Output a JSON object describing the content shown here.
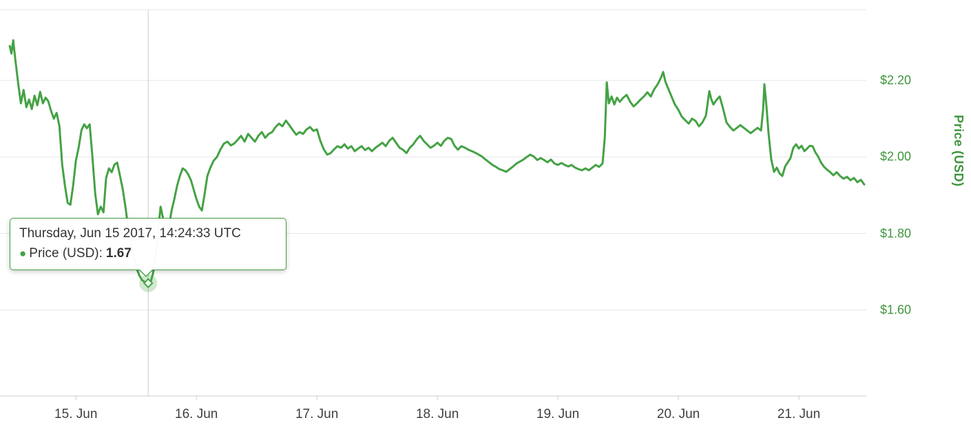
{
  "colors": {
    "line": "#44a244",
    "axis_label_green": "#3e953e",
    "x_tick_text": "#3f3f3f",
    "grid": "#e6e6e6",
    "axis_line": "#cccccc",
    "crosshair": "#cccccc",
    "halo_opacity": 0.25
  },
  "tooltip": {
    "datetime": "Thursday, Jun 15 2017, 14:24:33 UTC",
    "bullet": "●",
    "series_label": "Price (USD):",
    "value": "1.67",
    "point_day": 0.6,
    "point_price": 1.67
  },
  "chart_data": {
    "type": "line",
    "title": "",
    "series_name": "Price (USD)",
    "legend": "none",
    "grid": "horizontal-only",
    "x_axis": {
      "note": "x unit = days since 15 Jun 2017 00:00 UTC",
      "tick_labels": [
        "15. Jun",
        "16. Jun",
        "17. Jun",
        "18. Jun",
        "19. Jun",
        "20. Jun",
        "21. Jun"
      ],
      "tick_days": [
        0,
        1,
        2,
        3,
        4,
        5,
        6
      ],
      "xlim_days": [
        -0.63,
        6.56
      ]
    },
    "y_axis": {
      "title": "Price (USD)",
      "tick_labels": [
        "$2.20",
        "$2.00",
        "$1.80",
        "$1.60"
      ],
      "tick_values": [
        2.2,
        2.0,
        1.8,
        1.6
      ],
      "ylim": [
        1.375,
        2.385
      ],
      "position": "right"
    },
    "point_format": [
      "days_since_2017-06-15T00:00Z",
      "price_usd"
    ],
    "points": [
      [
        -0.549,
        2.29
      ],
      [
        -0.535,
        2.27
      ],
      [
        -0.52,
        2.305
      ],
      [
        -0.505,
        2.26
      ],
      [
        -0.48,
        2.195
      ],
      [
        -0.457,
        2.14
      ],
      [
        -0.434,
        2.175
      ],
      [
        -0.411,
        2.13
      ],
      [
        -0.389,
        2.15
      ],
      [
        -0.366,
        2.125
      ],
      [
        -0.343,
        2.16
      ],
      [
        -0.32,
        2.135
      ],
      [
        -0.297,
        2.17
      ],
      [
        -0.274,
        2.14
      ],
      [
        -0.251,
        2.155
      ],
      [
        -0.229,
        2.145
      ],
      [
        -0.206,
        2.12
      ],
      [
        -0.183,
        2.1
      ],
      [
        -0.16,
        2.115
      ],
      [
        -0.137,
        2.08
      ],
      [
        -0.114,
        1.98
      ],
      [
        -0.091,
        1.925
      ],
      [
        -0.069,
        1.88
      ],
      [
        -0.046,
        1.875
      ],
      [
        -0.023,
        1.925
      ],
      [
        0,
        1.99
      ],
      [
        0.023,
        2.025
      ],
      [
        0.046,
        2.07
      ],
      [
        0.069,
        2.085
      ],
      [
        0.091,
        2.075
      ],
      [
        0.114,
        2.085
      ],
      [
        0.137,
        2
      ],
      [
        0.16,
        1.905
      ],
      [
        0.183,
        1.85
      ],
      [
        0.206,
        1.87
      ],
      [
        0.229,
        1.855
      ],
      [
        0.251,
        1.945
      ],
      [
        0.274,
        1.97
      ],
      [
        0.297,
        1.96
      ],
      [
        0.32,
        1.98
      ],
      [
        0.343,
        1.985
      ],
      [
        0.366,
        1.95
      ],
      [
        0.389,
        1.915
      ],
      [
        0.411,
        1.87
      ],
      [
        0.434,
        1.815
      ],
      [
        0.457,
        1.78
      ],
      [
        0.48,
        1.745
      ],
      [
        0.503,
        1.71
      ],
      [
        0.526,
        1.69
      ],
      [
        0.549,
        1.678
      ],
      [
        0.574,
        1.672
      ],
      [
        0.6,
        1.67
      ],
      [
        0.623,
        1.676
      ],
      [
        0.64,
        1.695
      ],
      [
        0.657,
        1.73
      ],
      [
        0.68,
        1.8
      ],
      [
        0.703,
        1.87
      ],
      [
        0.726,
        1.835
      ],
      [
        0.749,
        1.79
      ],
      [
        0.771,
        1.815
      ],
      [
        0.794,
        1.86
      ],
      [
        0.817,
        1.89
      ],
      [
        0.84,
        1.925
      ],
      [
        0.863,
        1.95
      ],
      [
        0.886,
        1.97
      ],
      [
        0.909,
        1.965
      ],
      [
        0.931,
        1.955
      ],
      [
        0.954,
        1.94
      ],
      [
        0.977,
        1.915
      ],
      [
        1,
        1.89
      ],
      [
        1.023,
        1.87
      ],
      [
        1.046,
        1.86
      ],
      [
        1.069,
        1.905
      ],
      [
        1.091,
        1.95
      ],
      [
        1.114,
        1.97
      ],
      [
        1.143,
        1.99
      ],
      [
        1.171,
        2
      ],
      [
        1.2,
        2.02
      ],
      [
        1.229,
        2.035
      ],
      [
        1.257,
        2.04
      ],
      [
        1.286,
        2.03
      ],
      [
        1.314,
        2.035
      ],
      [
        1.343,
        2.045
      ],
      [
        1.371,
        2.055
      ],
      [
        1.4,
        2.04
      ],
      [
        1.429,
        2.06
      ],
      [
        1.457,
        2.05
      ],
      [
        1.486,
        2.04
      ],
      [
        1.514,
        2.055
      ],
      [
        1.543,
        2.065
      ],
      [
        1.571,
        2.05
      ],
      [
        1.6,
        2.06
      ],
      [
        1.629,
        2.065
      ],
      [
        1.657,
        2.078
      ],
      [
        1.686,
        2.087
      ],
      [
        1.714,
        2.08
      ],
      [
        1.743,
        2.095
      ],
      [
        1.771,
        2.083
      ],
      [
        1.8,
        2.07
      ],
      [
        1.829,
        2.058
      ],
      [
        1.857,
        2.065
      ],
      [
        1.886,
        2.06
      ],
      [
        1.914,
        2.072
      ],
      [
        1.943,
        2.078
      ],
      [
        1.971,
        2.068
      ],
      [
        2,
        2.072
      ],
      [
        2.029,
        2.042
      ],
      [
        2.057,
        2.02
      ],
      [
        2.086,
        2.006
      ],
      [
        2.114,
        2.01
      ],
      [
        2.143,
        2.02
      ],
      [
        2.171,
        2.028
      ],
      [
        2.2,
        2.024
      ],
      [
        2.229,
        2.033
      ],
      [
        2.257,
        2.022
      ],
      [
        2.286,
        2.028
      ],
      [
        2.314,
        2.015
      ],
      [
        2.343,
        2.022
      ],
      [
        2.371,
        2.028
      ],
      [
        2.4,
        2.018
      ],
      [
        2.429,
        2.024
      ],
      [
        2.457,
        2.015
      ],
      [
        2.486,
        2.024
      ],
      [
        2.514,
        2.03
      ],
      [
        2.543,
        2.037
      ],
      [
        2.571,
        2.028
      ],
      [
        2.6,
        2.042
      ],
      [
        2.629,
        2.05
      ],
      [
        2.657,
        2.037
      ],
      [
        2.686,
        2.024
      ],
      [
        2.714,
        2.019
      ],
      [
        2.743,
        2.01
      ],
      [
        2.771,
        2.024
      ],
      [
        2.8,
        2.033
      ],
      [
        2.829,
        2.046
      ],
      [
        2.857,
        2.055
      ],
      [
        2.886,
        2.042
      ],
      [
        2.914,
        2.033
      ],
      [
        2.943,
        2.024
      ],
      [
        2.971,
        2.029
      ],
      [
        3,
        2.037
      ],
      [
        3.029,
        2.029
      ],
      [
        3.057,
        2.042
      ],
      [
        3.086,
        2.05
      ],
      [
        3.114,
        2.047
      ],
      [
        3.143,
        2.029
      ],
      [
        3.171,
        2.019
      ],
      [
        3.2,
        2.028
      ],
      [
        3.229,
        2.024
      ],
      [
        3.257,
        2.019
      ],
      [
        3.286,
        2.015
      ],
      [
        3.314,
        2.011
      ],
      [
        3.343,
        2.006
      ],
      [
        3.371,
        2.001
      ],
      [
        3.4,
        1.993
      ],
      [
        3.429,
        1.986
      ],
      [
        3.457,
        1.979
      ],
      [
        3.486,
        1.974
      ],
      [
        3.514,
        1.968
      ],
      [
        3.543,
        1.965
      ],
      [
        3.571,
        1.961
      ],
      [
        3.6,
        1.968
      ],
      [
        3.629,
        1.975
      ],
      [
        3.657,
        1.983
      ],
      [
        3.686,
        1.988
      ],
      [
        3.714,
        1.993
      ],
      [
        3.743,
        2
      ],
      [
        3.771,
        2.006
      ],
      [
        3.8,
        2.001
      ],
      [
        3.829,
        1.992
      ],
      [
        3.857,
        1.997
      ],
      [
        3.886,
        1.992
      ],
      [
        3.914,
        1.986
      ],
      [
        3.943,
        1.993
      ],
      [
        3.971,
        1.983
      ],
      [
        4,
        1.979
      ],
      [
        4.029,
        1.984
      ],
      [
        4.057,
        1.979
      ],
      [
        4.086,
        1.975
      ],
      [
        4.114,
        1.979
      ],
      [
        4.143,
        1.972
      ],
      [
        4.171,
        1.968
      ],
      [
        4.2,
        1.965
      ],
      [
        4.229,
        1.97
      ],
      [
        4.257,
        1.965
      ],
      [
        4.286,
        1.972
      ],
      [
        4.314,
        1.979
      ],
      [
        4.343,
        1.974
      ],
      [
        4.371,
        1.983
      ],
      [
        4.389,
        2.05
      ],
      [
        4.406,
        2.195
      ],
      [
        4.423,
        2.14
      ],
      [
        4.446,
        2.158
      ],
      [
        4.469,
        2.137
      ],
      [
        4.491,
        2.155
      ],
      [
        4.514,
        2.144
      ],
      [
        4.543,
        2.155
      ],
      [
        4.571,
        2.162
      ],
      [
        4.6,
        2.144
      ],
      [
        4.629,
        2.132
      ],
      [
        4.657,
        2.14
      ],
      [
        4.686,
        2.15
      ],
      [
        4.714,
        2.158
      ],
      [
        4.743,
        2.169
      ],
      [
        4.771,
        2.158
      ],
      [
        4.8,
        2.177
      ],
      [
        4.829,
        2.19
      ],
      [
        4.857,
        2.208
      ],
      [
        4.874,
        2.222
      ],
      [
        4.891,
        2.198
      ],
      [
        4.914,
        2.18
      ],
      [
        4.943,
        2.158
      ],
      [
        4.971,
        2.137
      ],
      [
        5,
        2.123
      ],
      [
        5.029,
        2.105
      ],
      [
        5.057,
        2.096
      ],
      [
        5.086,
        2.087
      ],
      [
        5.114,
        2.1
      ],
      [
        5.143,
        2.094
      ],
      [
        5.171,
        2.08
      ],
      [
        5.2,
        2.09
      ],
      [
        5.229,
        2.108
      ],
      [
        5.257,
        2.172
      ],
      [
        5.274,
        2.15
      ],
      [
        5.291,
        2.137
      ],
      [
        5.314,
        2.148
      ],
      [
        5.343,
        2.158
      ],
      [
        5.371,
        2.126
      ],
      [
        5.4,
        2.09
      ],
      [
        5.429,
        2.078
      ],
      [
        5.457,
        2.069
      ],
      [
        5.486,
        2.076
      ],
      [
        5.514,
        2.083
      ],
      [
        5.543,
        2.076
      ],
      [
        5.571,
        2.069
      ],
      [
        5.6,
        2.062
      ],
      [
        5.629,
        2.069
      ],
      [
        5.657,
        2.076
      ],
      [
        5.686,
        2.069
      ],
      [
        5.703,
        2.123
      ],
      [
        5.714,
        2.19
      ],
      [
        5.731,
        2.132
      ],
      [
        5.749,
        2.06
      ],
      [
        5.771,
        1.993
      ],
      [
        5.794,
        1.961
      ],
      [
        5.817,
        1.972
      ],
      [
        5.84,
        1.957
      ],
      [
        5.863,
        1.95
      ],
      [
        5.886,
        1.975
      ],
      [
        5.909,
        1.986
      ],
      [
        5.931,
        1.997
      ],
      [
        5.954,
        2.024
      ],
      [
        5.977,
        2.033
      ],
      [
        6,
        2.022
      ],
      [
        6.023,
        2.029
      ],
      [
        6.046,
        2.015
      ],
      [
        6.069,
        2.022
      ],
      [
        6.091,
        2.029
      ],
      [
        6.114,
        2.028
      ],
      [
        6.137,
        2.012
      ],
      [
        6.16,
        2.001
      ],
      [
        6.183,
        1.986
      ],
      [
        6.206,
        1.975
      ],
      [
        6.229,
        1.968
      ],
      [
        6.257,
        1.961
      ],
      [
        6.286,
        1.952
      ],
      [
        6.314,
        1.96
      ],
      [
        6.343,
        1.95
      ],
      [
        6.371,
        1.943
      ],
      [
        6.4,
        1.948
      ],
      [
        6.429,
        1.939
      ],
      [
        6.457,
        1.945
      ],
      [
        6.486,
        1.934
      ],
      [
        6.514,
        1.94
      ],
      [
        6.543,
        1.928
      ]
    ]
  }
}
